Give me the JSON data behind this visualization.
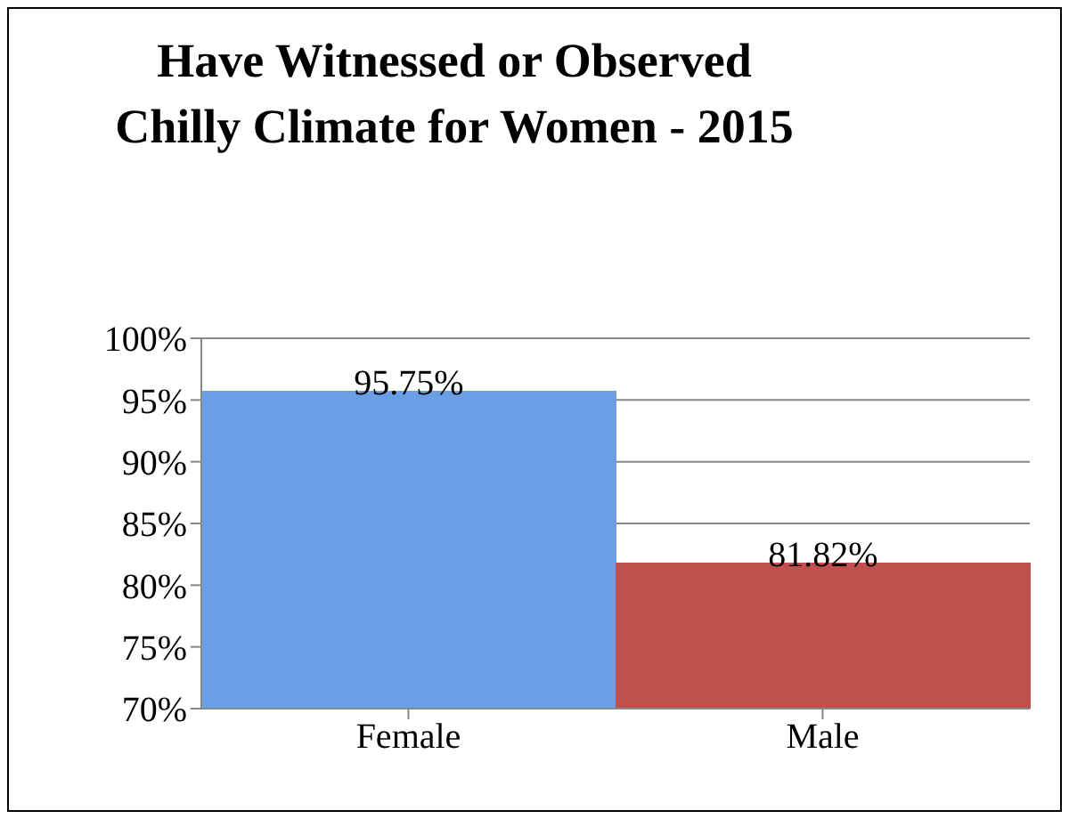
{
  "chart_data": {
    "type": "bar",
    "title": "Have Witnessed or Observed Chilly Climate for Women - 2015",
    "categories": [
      "Female",
      "Male"
    ],
    "values": [
      95.75,
      81.82
    ],
    "colors": [
      "#6a9fe6",
      "#c0504d"
    ],
    "value_labels": [
      "95.75%",
      "81.82%"
    ],
    "ylim": [
      70,
      100
    ],
    "yticks": [
      {
        "value": 70,
        "label": "70%"
      },
      {
        "value": 75,
        "label": "75%"
      },
      {
        "value": 80,
        "label": "80%"
      },
      {
        "value": 85,
        "label": "85%"
      },
      {
        "value": 90,
        "label": "90%"
      },
      {
        "value": 95,
        "label": "95%"
      },
      {
        "value": 100,
        "label": "100%"
      }
    ],
    "grid": "y"
  }
}
